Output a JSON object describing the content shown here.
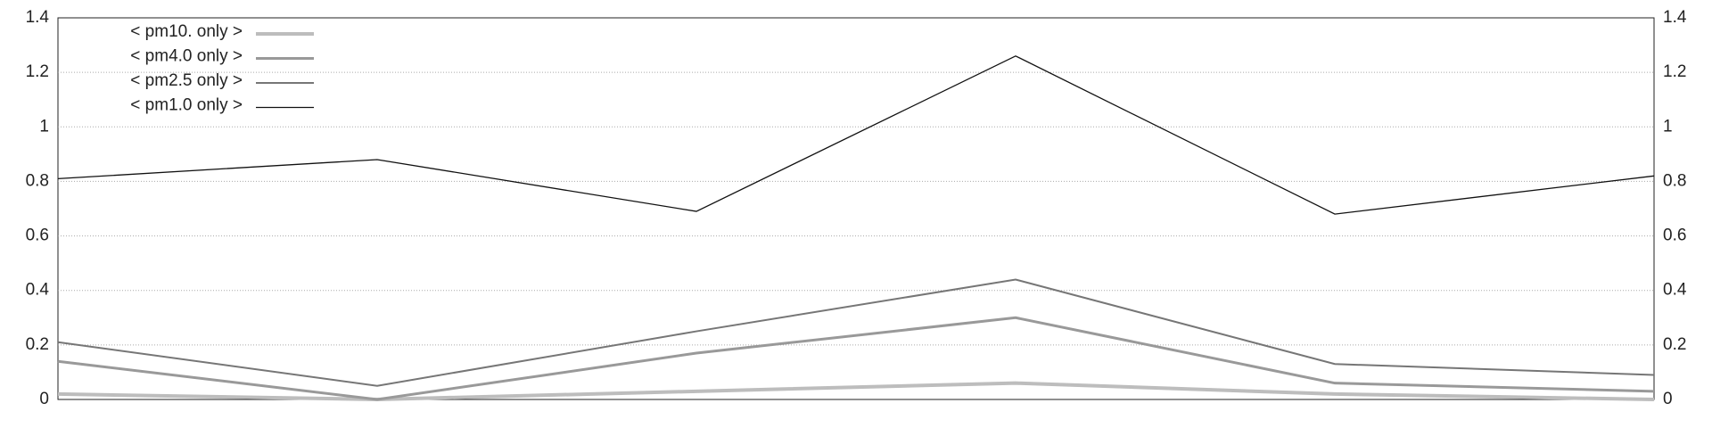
{
  "chart_data": {
    "type": "line",
    "categories": [
      null,
      null,
      null,
      null,
      null,
      null
    ],
    "series": [
      {
        "name": "< pm10. only >",
        "color": "#bdbdbd",
        "width": 4,
        "values": [
          0.02,
          0.0,
          0.03,
          0.06,
          0.02,
          0.0
        ]
      },
      {
        "name": "< pm4.0 only >",
        "color": "#999999",
        "width": 3,
        "values": [
          0.14,
          0.0,
          0.17,
          0.3,
          0.06,
          0.03
        ]
      },
      {
        "name": "< pm2.5 only >",
        "color": "#767676",
        "width": 2,
        "values": [
          0.21,
          0.05,
          0.25,
          0.44,
          0.13,
          0.09
        ]
      },
      {
        "name": "< pm1.0 only >",
        "color": "#111111",
        "width": 1.3,
        "values": [
          0.81,
          0.88,
          0.69,
          1.26,
          0.68,
          0.82
        ]
      }
    ],
    "ylim": [
      0,
      1.4
    ],
    "yticks": [
      0,
      0.2,
      0.4,
      0.6,
      0.8,
      1,
      1.2,
      1.4
    ],
    "grid": true
  }
}
